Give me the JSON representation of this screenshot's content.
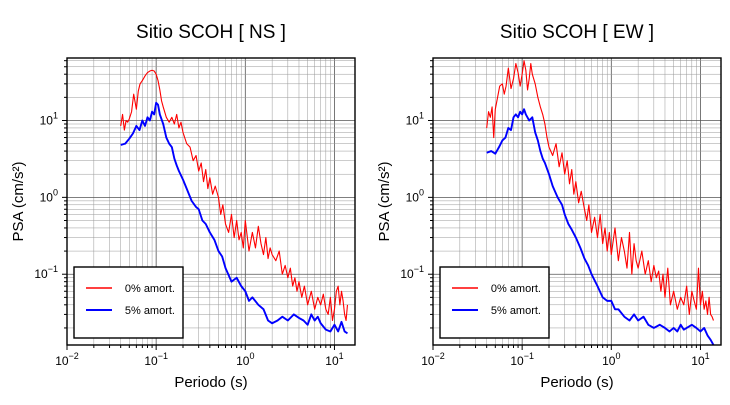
{
  "chart_data": [
    {
      "type": "line",
      "title": "Sitio SCOH [ NS ]",
      "xlabel": "Periodo (s)",
      "ylabel": "PSA (cm/s²)",
      "xscale": "log",
      "yscale": "log",
      "xlim": [
        0.01,
        17
      ],
      "ylim": [
        0.012,
        65
      ],
      "grid": true,
      "legend_position": "bottom-left",
      "x_ticks": [
        {
          "value": 0.01,
          "base": "10",
          "exp": "−2"
        },
        {
          "value": 0.1,
          "base": "10",
          "exp": "−1"
        },
        {
          "value": 1,
          "base": "10",
          "exp": "0"
        },
        {
          "value": 10,
          "base": "10",
          "exp": "1"
        }
      ],
      "y_ticks": [
        {
          "value": 0.1,
          "base": "10",
          "exp": "−1"
        },
        {
          "value": 1,
          "base": "10",
          "exp": "0"
        },
        {
          "value": 10,
          "base": "10",
          "exp": "1"
        }
      ],
      "series": [
        {
          "name": "0% amort.",
          "color": "#ff0000",
          "x": [
            0.04,
            0.042,
            0.044,
            0.046,
            0.048,
            0.05,
            0.053,
            0.056,
            0.06,
            0.063,
            0.066,
            0.07,
            0.075,
            0.08,
            0.085,
            0.09,
            0.095,
            0.1,
            0.105,
            0.11,
            0.115,
            0.12,
            0.13,
            0.14,
            0.15,
            0.16,
            0.17,
            0.18,
            0.19,
            0.2,
            0.22,
            0.24,
            0.26,
            0.28,
            0.3,
            0.32,
            0.34,
            0.36,
            0.38,
            0.4,
            0.43,
            0.46,
            0.5,
            0.53,
            0.56,
            0.6,
            0.65,
            0.7,
            0.75,
            0.8,
            0.85,
            0.9,
            0.95,
            1.0,
            1.1,
            1.2,
            1.3,
            1.4,
            1.5,
            1.6,
            1.7,
            1.8,
            1.9,
            2.0,
            2.2,
            2.4,
            2.6,
            2.8,
            3.0,
            3.2,
            3.4,
            3.6,
            3.8,
            4.0,
            4.3,
            4.6,
            5.0,
            5.5,
            6.0,
            6.5,
            7.0,
            7.5,
            8.0,
            8.5,
            9.0,
            9.5,
            10.0,
            10.5,
            11.0,
            11.5,
            12.0,
            12.5,
            13.0,
            13.5,
            14.0
          ],
          "y": [
            8.5,
            12,
            7.5,
            10,
            9.5,
            10.5,
            13,
            22,
            14,
            24,
            30,
            33,
            38,
            42,
            44,
            45,
            44,
            40,
            33,
            25,
            18,
            15,
            11,
            9.5,
            11,
            9,
            12,
            8,
            9.5,
            7,
            5,
            4.5,
            3,
            3.5,
            2.2,
            2.8,
            1.6,
            2.3,
            1.3,
            1.8,
            1.1,
            1.4,
            1.0,
            0.6,
            0.8,
            0.45,
            0.35,
            0.6,
            0.3,
            0.5,
            0.28,
            0.35,
            0.22,
            0.5,
            0.2,
            0.35,
            0.22,
            0.42,
            0.25,
            0.18,
            0.3,
            0.16,
            0.22,
            0.18,
            0.15,
            0.2,
            0.1,
            0.13,
            0.09,
            0.12,
            0.07,
            0.09,
            0.06,
            0.08,
            0.05,
            0.07,
            0.04,
            0.06,
            0.035,
            0.05,
            0.04,
            0.055,
            0.035,
            0.03,
            0.05,
            0.025,
            0.035,
            0.06,
            0.07,
            0.04,
            0.06,
            0.045,
            0.03,
            0.025,
            0.04
          ]
        },
        {
          "name": "5% amort.",
          "color": "#0000ff",
          "x": [
            0.04,
            0.045,
            0.05,
            0.055,
            0.06,
            0.065,
            0.07,
            0.075,
            0.08,
            0.085,
            0.09,
            0.095,
            0.1,
            0.105,
            0.11,
            0.12,
            0.13,
            0.14,
            0.15,
            0.16,
            0.17,
            0.18,
            0.2,
            0.22,
            0.25,
            0.28,
            0.3,
            0.33,
            0.36,
            0.4,
            0.45,
            0.5,
            0.55,
            0.6,
            0.7,
            0.8,
            0.9,
            1.0,
            1.1,
            1.2,
            1.4,
            1.6,
            1.8,
            2.0,
            2.3,
            2.6,
            3.0,
            3.5,
            4.0,
            4.5,
            5.0,
            5.5,
            6.0,
            6.5,
            7.0,
            8.0,
            9.0,
            10.0,
            11.0,
            12.0,
            13.0,
            14.0
          ],
          "y": [
            4.8,
            5.0,
            5.8,
            6.8,
            8.5,
            7.5,
            10,
            8.5,
            11,
            10,
            13,
            12,
            17,
            16,
            12,
            9,
            6,
            5.0,
            4.5,
            3.2,
            2.6,
            2.2,
            1.7,
            1.3,
            0.9,
            0.75,
            0.7,
            0.5,
            0.45,
            0.35,
            0.28,
            0.2,
            0.17,
            0.12,
            0.08,
            0.09,
            0.07,
            0.06,
            0.045,
            0.05,
            0.04,
            0.035,
            0.025,
            0.023,
            0.025,
            0.028,
            0.025,
            0.03,
            0.027,
            0.025,
            0.022,
            0.03,
            0.025,
            0.028,
            0.023,
            0.019,
            0.018,
            0.022,
            0.018,
            0.024,
            0.018,
            0.017
          ]
        }
      ]
    },
    {
      "type": "line",
      "title": "Sitio SCOH [ EW ]",
      "xlabel": "Periodo (s)",
      "ylabel": "PSA (cm/s²)",
      "xscale": "log",
      "yscale": "log",
      "xlim": [
        0.01,
        17
      ],
      "ylim": [
        0.012,
        65
      ],
      "grid": true,
      "legend_position": "bottom-left",
      "x_ticks": [
        {
          "value": 0.01,
          "base": "10",
          "exp": "−2"
        },
        {
          "value": 0.1,
          "base": "10",
          "exp": "−1"
        },
        {
          "value": 1,
          "base": "10",
          "exp": "0"
        },
        {
          "value": 10,
          "base": "10",
          "exp": "1"
        }
      ],
      "y_ticks": [
        {
          "value": 0.1,
          "base": "10",
          "exp": "−1"
        },
        {
          "value": 1,
          "base": "10",
          "exp": "0"
        },
        {
          "value": 10,
          "base": "10",
          "exp": "1"
        }
      ],
      "series": [
        {
          "name": "0% amort.",
          "color": "#ff0000",
          "x": [
            0.04,
            0.042,
            0.044,
            0.046,
            0.048,
            0.05,
            0.053,
            0.056,
            0.06,
            0.063,
            0.066,
            0.07,
            0.075,
            0.08,
            0.085,
            0.09,
            0.095,
            0.1,
            0.105,
            0.11,
            0.115,
            0.12,
            0.125,
            0.13,
            0.14,
            0.15,
            0.16,
            0.17,
            0.18,
            0.19,
            0.2,
            0.22,
            0.24,
            0.26,
            0.28,
            0.3,
            0.32,
            0.34,
            0.36,
            0.38,
            0.4,
            0.43,
            0.46,
            0.5,
            0.53,
            0.56,
            0.6,
            0.65,
            0.7,
            0.75,
            0.8,
            0.85,
            0.9,
            0.95,
            1.0,
            1.1,
            1.2,
            1.3,
            1.4,
            1.5,
            1.6,
            1.7,
            1.8,
            1.9,
            2.0,
            2.2,
            2.4,
            2.6,
            2.8,
            3.0,
            3.2,
            3.4,
            3.6,
            3.8,
            4.0,
            4.3,
            4.6,
            5.0,
            5.5,
            6.0,
            6.5,
            7.0,
            7.5,
            8.0,
            8.5,
            9.0,
            9.5,
            10.0,
            10.5,
            11.0,
            11.5,
            12.0,
            12.5,
            13.0,
            13.5,
            14.0
          ],
          "y": [
            8.0,
            13,
            11,
            15,
            6,
            14,
            20,
            28,
            30,
            22,
            28,
            48,
            26,
            35,
            55,
            42,
            28,
            40,
            60,
            45,
            25,
            35,
            55,
            40,
            30,
            20,
            15,
            12,
            9,
            6,
            4.5,
            3.5,
            5,
            2.5,
            3.8,
            2,
            3,
            1.5,
            2.3,
            1.1,
            1.6,
            0.85,
            1.2,
            0.7,
            0.5,
            0.8,
            0.35,
            0.55,
            0.3,
            0.6,
            0.25,
            0.4,
            0.2,
            0.35,
            0.18,
            0.4,
            0.15,
            0.3,
            0.2,
            0.12,
            0.35,
            0.1,
            0.25,
            0.15,
            0.12,
            0.2,
            0.1,
            0.15,
            0.08,
            0.13,
            0.09,
            0.11,
            0.06,
            0.1,
            0.05,
            0.12,
            0.04,
            0.06,
            0.035,
            0.05,
            0.04,
            0.07,
            0.03,
            0.06,
            0.045,
            0.035,
            0.12,
            0.04,
            0.06,
            0.035,
            0.045,
            0.03,
            0.05,
            0.03,
            0.028,
            0.025
          ]
        },
        {
          "name": "5% amort.",
          "color": "#0000ff",
          "x": [
            0.04,
            0.045,
            0.05,
            0.055,
            0.06,
            0.065,
            0.07,
            0.075,
            0.08,
            0.085,
            0.09,
            0.095,
            0.1,
            0.105,
            0.11,
            0.12,
            0.13,
            0.14,
            0.15,
            0.16,
            0.17,
            0.18,
            0.2,
            0.22,
            0.25,
            0.28,
            0.3,
            0.33,
            0.36,
            0.4,
            0.45,
            0.5,
            0.55,
            0.6,
            0.7,
            0.8,
            0.9,
            1.0,
            1.1,
            1.2,
            1.4,
            1.6,
            1.8,
            2.0,
            2.3,
            2.6,
            3.0,
            3.5,
            4.0,
            4.5,
            5.0,
            5.5,
            6.0,
            6.5,
            7.0,
            8.0,
            9.0,
            10.0,
            11.0,
            12.0,
            13.0,
            14.0
          ],
          "y": [
            3.8,
            4.0,
            3.7,
            4.5,
            5.5,
            6.0,
            8.0,
            7.5,
            11,
            12,
            11,
            13,
            12,
            14,
            12,
            10,
            11,
            7,
            5.5,
            4.0,
            3.2,
            2.8,
            2.0,
            1.4,
            1.0,
            0.8,
            0.6,
            0.45,
            0.38,
            0.3,
            0.22,
            0.16,
            0.13,
            0.1,
            0.07,
            0.05,
            0.045,
            0.045,
            0.035,
            0.035,
            0.028,
            0.025,
            0.03,
            0.025,
            0.028,
            0.022,
            0.02,
            0.022,
            0.02,
            0.018,
            0.02,
            0.018,
            0.022,
            0.019,
            0.02,
            0.022,
            0.02,
            0.018,
            0.02,
            0.016,
            0.014,
            0.012
          ]
        }
      ]
    }
  ]
}
